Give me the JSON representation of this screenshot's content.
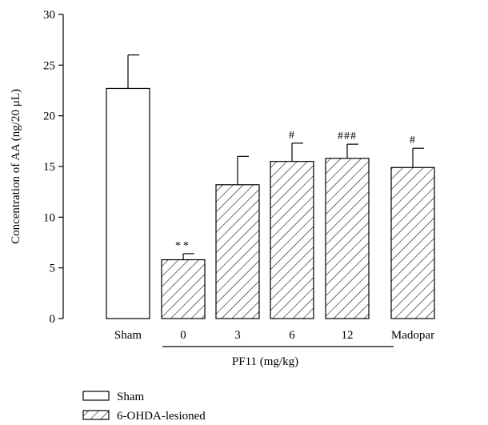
{
  "chart_data": {
    "type": "bar",
    "title": "",
    "ylabel": "Concentration of AA (ng/20 μL)",
    "xlabel": "",
    "ylim": [
      0,
      30
    ],
    "yticks": [
      0,
      5,
      10,
      15,
      20,
      25,
      30
    ],
    "grid": false,
    "categories": [
      "Sham",
      "0",
      "3",
      "6",
      "12",
      "Madopar"
    ],
    "values": [
      22.7,
      5.8,
      13.2,
      15.5,
      15.8,
      14.9
    ],
    "errors": [
      3.3,
      0.6,
      2.8,
      1.8,
      1.4,
      1.9
    ],
    "groups": [
      "Sham",
      "6-OHDA-lesioned",
      "6-OHDA-lesioned",
      "6-OHDA-lesioned",
      "6-OHDA-lesioned",
      "6-OHDA-lesioned"
    ],
    "annotations": [
      "",
      "**",
      "",
      "#",
      "###",
      "#"
    ],
    "group_bracket": {
      "label": "PF11 (mg/kg)",
      "from_category": 1,
      "to_category": 4
    },
    "legend": {
      "position": "bottom-left",
      "items": [
        {
          "label": "Sham",
          "pattern": "empty"
        },
        {
          "label": "6-OHDA-lesioned",
          "pattern": "hatched"
        }
      ]
    }
  }
}
